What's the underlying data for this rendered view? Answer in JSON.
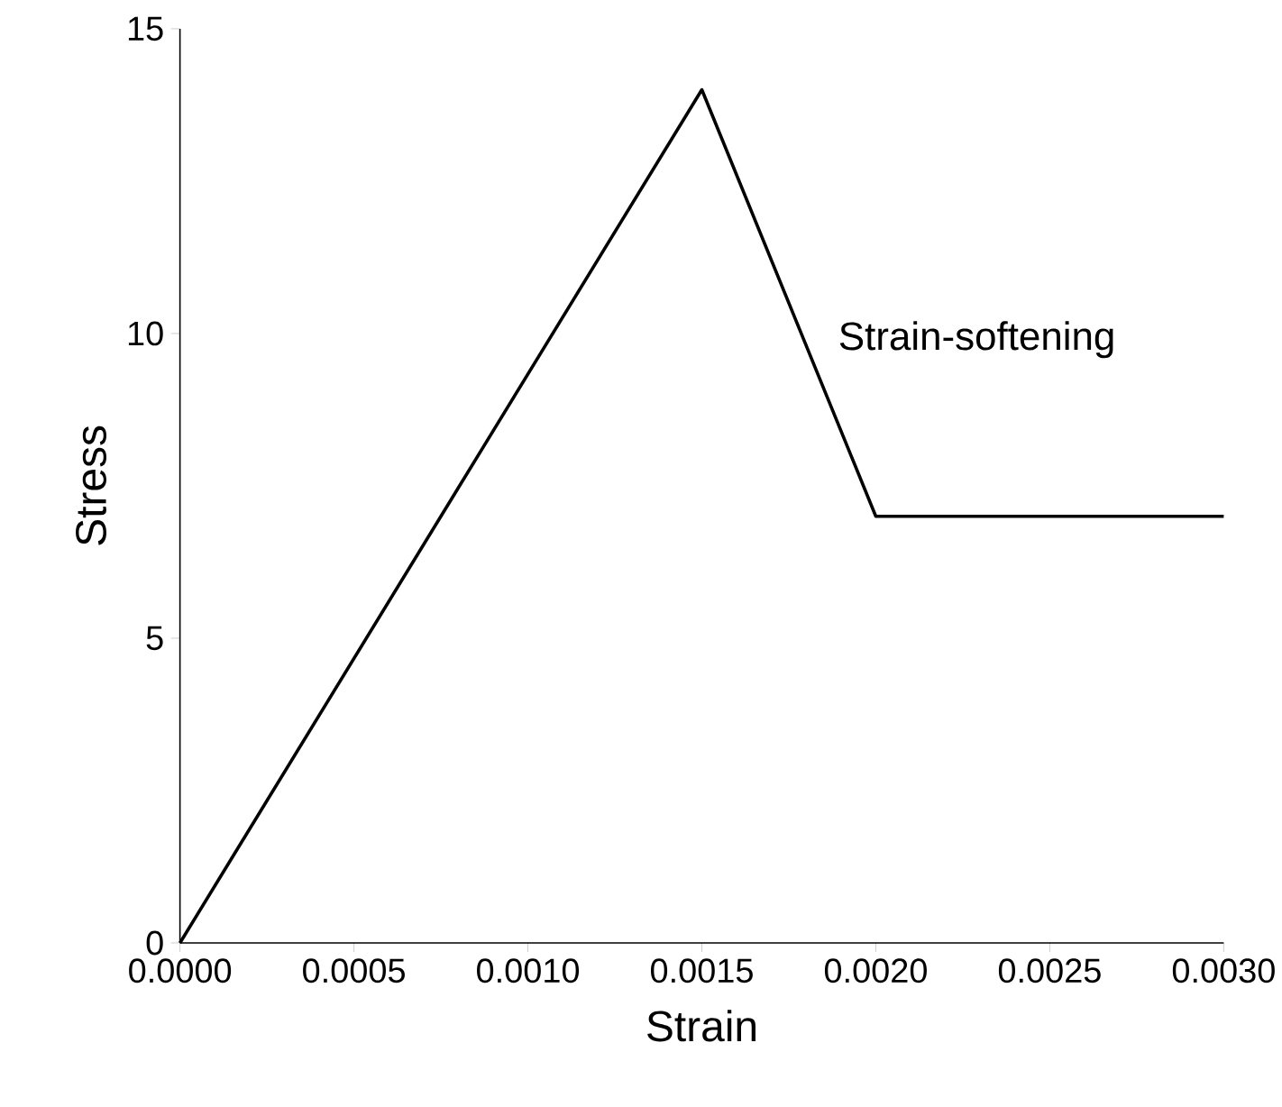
{
  "chart_data": {
    "type": "line",
    "xlabel": "Strain",
    "ylabel": "Stress",
    "x": [
      0,
      0.0015,
      0.002,
      0.003
    ],
    "series": [
      {
        "color": "#000000",
        "values": [
          0,
          14,
          7,
          7
        ]
      }
    ],
    "xlim": [
      0,
      0.003
    ],
    "xticks": [
      {
        "value": 0,
        "label": "0.0000"
      },
      {
        "value": 0.0005,
        "label": "0.0005"
      },
      {
        "value": 0.001,
        "label": "0.0010"
      },
      {
        "value": 0.0015,
        "label": "0.0015"
      },
      {
        "value": 0.002,
        "label": "0.0020"
      },
      {
        "value": 0.0025,
        "label": "0.0025"
      },
      {
        "value": 0.003,
        "label": "0.0030"
      }
    ],
    "ylim": [
      0,
      15
    ],
    "yticks": [
      0,
      5,
      10,
      15
    ],
    "annotations": [
      "Strain-softening"
    ],
    "marker": "none",
    "line_style": "solid"
  }
}
